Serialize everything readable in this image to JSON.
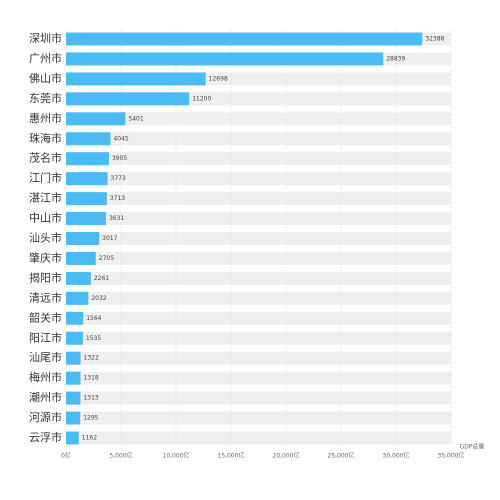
{
  "chart_data": {
    "type": "barh",
    "x_axis_label": "GDP总量",
    "categories": [
      "深圳市",
      "广州市",
      "佛山市",
      "东莞市",
      "惠州市",
      "珠海市",
      "茂名市",
      "江门市",
      "湛江市",
      "中山市",
      "汕头市",
      "肇庆市",
      "揭阳市",
      "清远市",
      "韶关市",
      "阳江市",
      "汕尾市",
      "梅州市",
      "潮州市",
      "河源市",
      "云浮市"
    ],
    "values": [
      32388,
      28839,
      12698,
      11200,
      5401,
      4045,
      3905,
      3773,
      3713,
      3631,
      3017,
      2705,
      2261,
      2032,
      1564,
      1535,
      1322,
      1318,
      1313,
      1295,
      1162
    ],
    "color": "#4cbaf3",
    "xlim": [
      0,
      35000
    ],
    "xticks": [
      {
        "value": 0,
        "label": "0亿"
      },
      {
        "value": 5000,
        "label": "5,000亿"
      },
      {
        "value": 10000,
        "label": "10,000亿"
      },
      {
        "value": 15000,
        "label": "15,000亿"
      },
      {
        "value": 20000,
        "label": "20,000亿"
      },
      {
        "value": 25000,
        "label": "25,000亿"
      },
      {
        "value": 30000,
        "label": "30,000亿"
      },
      {
        "value": 35000,
        "label": "35,000亿"
      }
    ],
    "grid": true
  }
}
